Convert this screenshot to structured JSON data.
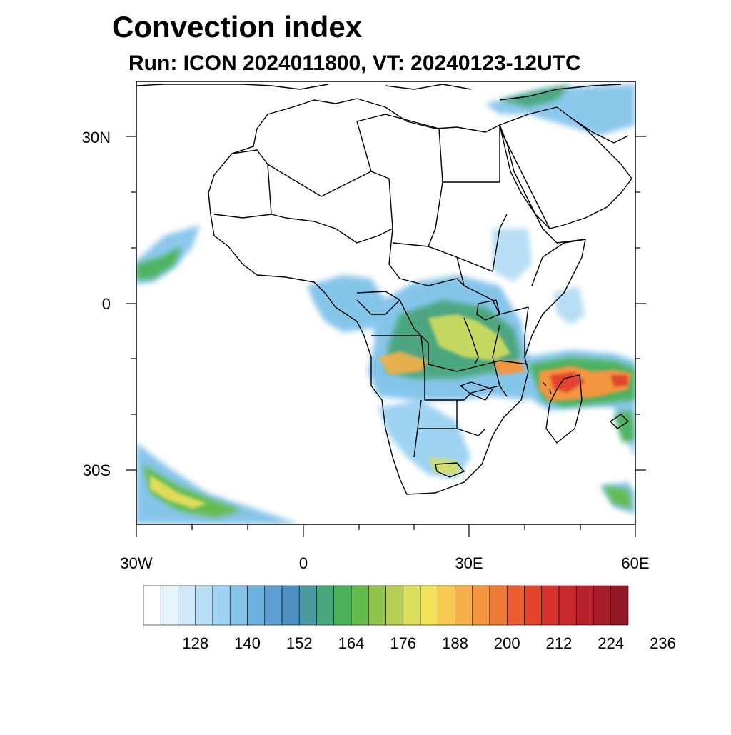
{
  "title": "Convection index",
  "subtitle": "Run: ICON 2024011800,  VT: 20240123-12UTC",
  "map": {
    "lon_range": [
      -30,
      60
    ],
    "lat_range": [
      -40,
      40
    ],
    "x_tick_labels": [
      "30W",
      "0",
      "30E",
      "60E"
    ],
    "y_tick_labels": [
      "30N",
      "0",
      "30S"
    ]
  },
  "colorbar": {
    "labels": [
      "128",
      "140",
      "152",
      "164",
      "176",
      "188",
      "200",
      "212",
      "224",
      "236"
    ],
    "colors": [
      "#ffffff",
      "#e8f4fb",
      "#cfe9f7",
      "#b7def4",
      "#9ed3f1",
      "#86c5ea",
      "#6db3e2",
      "#5d9fd4",
      "#4e8fc4",
      "#4c9aa0",
      "#4aa67c",
      "#4cb25a",
      "#63bb4c",
      "#8fc44e",
      "#b5cf52",
      "#dcdf5a",
      "#f3e25a",
      "#f8ca52",
      "#f6b049",
      "#f49540",
      "#ef7a38",
      "#ea5f31",
      "#e2452d",
      "#d9312c",
      "#c92a2f",
      "#b72130",
      "#a51c2a",
      "#921826"
    ]
  }
}
